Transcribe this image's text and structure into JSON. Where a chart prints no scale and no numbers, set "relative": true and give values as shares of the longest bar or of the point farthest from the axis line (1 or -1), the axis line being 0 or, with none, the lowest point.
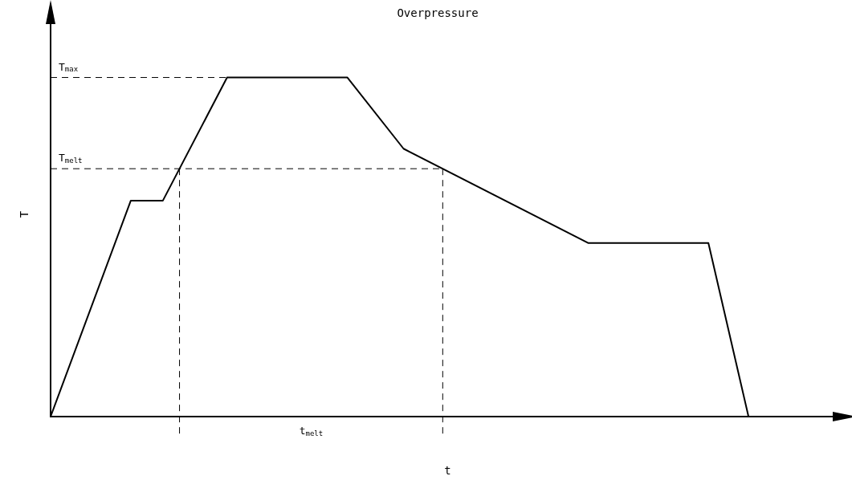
{
  "chart_data": {
    "type": "line",
    "title": "Overpressure",
    "xlabel": "t",
    "ylabel": "T",
    "relative": true,
    "marker": "none",
    "line_style": "solid",
    "categories": [
      null,
      null,
      null,
      null,
      null,
      null,
      null,
      null,
      null,
      null,
      null,
      null,
      null,
      null,
      null,
      null,
      null,
      null,
      null,
      null,
      null,
      null,
      null,
      null,
      null,
      null,
      null,
      null,
      null,
      null,
      null,
      null,
      null,
      null,
      null,
      null,
      null,
      null,
      null,
      null,
      null,
      null,
      null,
      null,
      null,
      null,
      null,
      null,
      null,
      null,
      null,
      null,
      null,
      null,
      null,
      null,
      null,
      null,
      null,
      null,
      null,
      null,
      null,
      null,
      null,
      null,
      null,
      null,
      null,
      null,
      null,
      null,
      null,
      null,
      null,
      null,
      null,
      null,
      null,
      null,
      null,
      null,
      null,
      null,
      null,
      null,
      null,
      null,
      null,
      null,
      null,
      null,
      null,
      null,
      null,
      null,
      null,
      null,
      null,
      null
    ],
    "series": [
      {
        "color": "#000000",
        "values": [
          0,
          null,
          null,
          null,
          null,
          null,
          null,
          null,
          null,
          null,
          0.637,
          null,
          null,
          null,
          0.637,
          null,
          null,
          null,
          null,
          null,
          null,
          null,
          1,
          null,
          null,
          null,
          null,
          null,
          null,
          null,
          null,
          null,
          null,
          null,
          null,
          null,
          null,
          1,
          null,
          null,
          null,
          null,
          null,
          null,
          0.79,
          null,
          null,
          null,
          null,
          null,
          null,
          null,
          null,
          null,
          null,
          null,
          null,
          null,
          null,
          null,
          null,
          null,
          null,
          null,
          null,
          null,
          null,
          0.512,
          null,
          null,
          null,
          null,
          null,
          null,
          null,
          null,
          null,
          null,
          null,
          null,
          null,
          null,
          0.512,
          null,
          null,
          null,
          null,
          0,
          null,
          null,
          null,
          null,
          null,
          null,
          null,
          null,
          null,
          null,
          null,
          null
        ]
      }
    ],
    "ref_lines": [
      {
        "axis": "y",
        "value": 1,
        "label": "T$_{max}$",
        "color": "#000000",
        "line_style": "dashed"
      },
      {
        "axis": "y",
        "value": 0.731,
        "label": "T$_{melt}$",
        "color": "#000000",
        "line_style": "dashed"
      }
    ],
    "annotations": [
      "t$_{melt}$"
    ]
  }
}
